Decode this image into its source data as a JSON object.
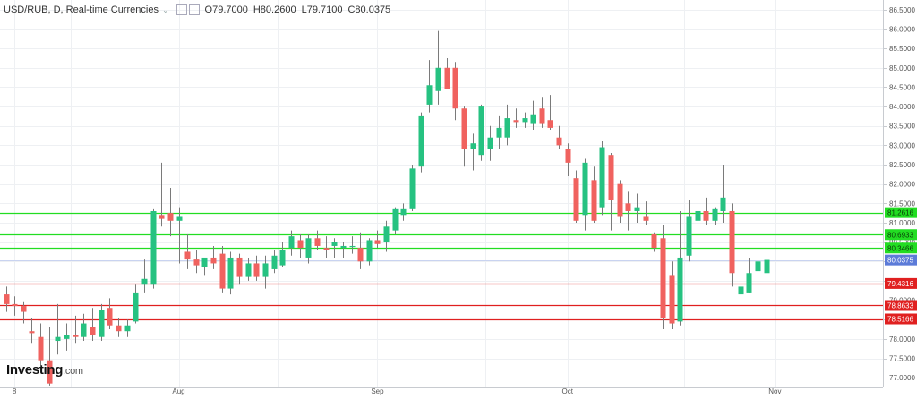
{
  "header": {
    "title": "USD/RUB, D, Real-time Currencies",
    "chevron": "⌄",
    "open": "O79.7000",
    "high": "H80.2600",
    "low": "L79.7100",
    "close": "C80.0375"
  },
  "branding": {
    "name": "Investing",
    "suffix": ".com"
  },
  "colors": {
    "up": "#26c281",
    "down": "#f0625f",
    "support": "#e02020",
    "resistance": "#22dd22",
    "last": "#5c7bd8",
    "grid": "#eef0f3"
  },
  "chart_data": {
    "type": "candlestick",
    "title": "USD/RUB, D, Real-time Currencies",
    "ylim": [
      76.75,
      86.75
    ],
    "y_ticks": [
      "86.5000",
      "86.0000",
      "85.5000",
      "85.0000",
      "84.5000",
      "84.0000",
      "83.5000",
      "83.0000",
      "82.5000",
      "82.0000",
      "81.5000",
      "81.0000",
      "80.5000",
      "80.0000",
      "79.5000",
      "79.0000",
      "78.5000",
      "78.0000",
      "77.5000",
      "77.0000"
    ],
    "x_tick_labels": [
      {
        "label": "8",
        "index": 1
      },
      {
        "label": "Aug",
        "index": 20
      },
      {
        "label": "Sep",
        "index": 43
      },
      {
        "label": "Oct",
        "index": 65
      },
      {
        "label": "Nov",
        "index": 89
      }
    ],
    "candles": [
      {
        "o": 79.15,
        "h": 79.35,
        "l": 78.7,
        "c": 78.9
      },
      {
        "o": 78.9,
        "h": 79.1,
        "l": 78.6,
        "c": 78.85
      },
      {
        "o": 78.85,
        "h": 78.95,
        "l": 78.4,
        "c": 78.7
      },
      {
        "o": 78.2,
        "h": 78.55,
        "l": 77.9,
        "c": 78.15
      },
      {
        "o": 78.05,
        "h": 78.4,
        "l": 77.3,
        "c": 77.45
      },
      {
        "o": 77.45,
        "h": 78.3,
        "l": 76.8,
        "c": 76.85
      },
      {
        "o": 77.95,
        "h": 78.9,
        "l": 77.6,
        "c": 78.05
      },
      {
        "o": 78.0,
        "h": 78.4,
        "l": 77.7,
        "c": 78.1
      },
      {
        "o": 78.1,
        "h": 78.6,
        "l": 77.9,
        "c": 78.05
      },
      {
        "o": 78.05,
        "h": 78.65,
        "l": 77.95,
        "c": 78.4
      },
      {
        "o": 78.3,
        "h": 78.8,
        "l": 77.95,
        "c": 78.1
      },
      {
        "o": 78.05,
        "h": 78.9,
        "l": 77.95,
        "c": 78.75
      },
      {
        "o": 78.8,
        "h": 79.05,
        "l": 78.25,
        "c": 78.35
      },
      {
        "o": 78.35,
        "h": 78.55,
        "l": 78.05,
        "c": 78.2
      },
      {
        "o": 78.2,
        "h": 78.5,
        "l": 78.05,
        "c": 78.35
      },
      {
        "o": 78.45,
        "h": 79.4,
        "l": 78.4,
        "c": 79.2
      },
      {
        "o": 79.4,
        "h": 80.05,
        "l": 79.2,
        "c": 79.55
      },
      {
        "o": 79.4,
        "h": 81.35,
        "l": 79.3,
        "c": 81.3
      },
      {
        "o": 81.2,
        "h": 82.55,
        "l": 80.9,
        "c": 81.1
      },
      {
        "o": 81.25,
        "h": 81.9,
        "l": 80.65,
        "c": 81.05
      },
      {
        "o": 81.05,
        "h": 81.4,
        "l": 79.95,
        "c": 81.15
      },
      {
        "o": 80.25,
        "h": 80.7,
        "l": 79.8,
        "c": 80.05
      },
      {
        "o": 80.05,
        "h": 80.3,
        "l": 79.7,
        "c": 79.9
      },
      {
        "o": 79.85,
        "h": 80.1,
        "l": 79.65,
        "c": 80.1
      },
      {
        "o": 80.1,
        "h": 80.4,
        "l": 79.8,
        "c": 79.95
      },
      {
        "o": 80.2,
        "h": 80.4,
        "l": 79.2,
        "c": 79.3
      },
      {
        "o": 79.3,
        "h": 80.25,
        "l": 79.15,
        "c": 80.1
      },
      {
        "o": 80.1,
        "h": 80.2,
        "l": 79.4,
        "c": 79.6
      },
      {
        "o": 79.6,
        "h": 80.1,
        "l": 79.5,
        "c": 79.95
      },
      {
        "o": 79.95,
        "h": 80.15,
        "l": 79.5,
        "c": 79.6
      },
      {
        "o": 79.6,
        "h": 80.15,
        "l": 79.3,
        "c": 79.95
      },
      {
        "o": 79.8,
        "h": 80.3,
        "l": 79.7,
        "c": 80.15
      },
      {
        "o": 79.9,
        "h": 80.5,
        "l": 79.85,
        "c": 80.3
      },
      {
        "o": 80.35,
        "h": 80.8,
        "l": 80.15,
        "c": 80.65
      },
      {
        "o": 80.55,
        "h": 80.7,
        "l": 80.1,
        "c": 80.35
      },
      {
        "o": 80.1,
        "h": 80.7,
        "l": 79.95,
        "c": 80.6
      },
      {
        "o": 80.6,
        "h": 80.8,
        "l": 80.3,
        "c": 80.4
      },
      {
        "o": 80.35,
        "h": 80.65,
        "l": 80.1,
        "c": 80.3
      },
      {
        "o": 80.4,
        "h": 80.6,
        "l": 80.1,
        "c": 80.5
      },
      {
        "o": 80.35,
        "h": 80.5,
        "l": 80.1,
        "c": 80.4
      },
      {
        "o": 80.4,
        "h": 80.65,
        "l": 80.2,
        "c": 80.4
      },
      {
        "o": 80.35,
        "h": 80.75,
        "l": 79.8,
        "c": 80.0
      },
      {
        "o": 80.0,
        "h": 80.6,
        "l": 79.9,
        "c": 80.55
      },
      {
        "o": 80.55,
        "h": 80.8,
        "l": 80.35,
        "c": 80.45
      },
      {
        "o": 80.5,
        "h": 81.05,
        "l": 80.25,
        "c": 80.9
      },
      {
        "o": 80.8,
        "h": 81.4,
        "l": 80.7,
        "c": 81.35
      },
      {
        "o": 81.2,
        "h": 81.5,
        "l": 81.05,
        "c": 81.35
      },
      {
        "o": 81.35,
        "h": 82.5,
        "l": 81.3,
        "c": 82.4
      },
      {
        "o": 82.45,
        "h": 83.85,
        "l": 82.3,
        "c": 83.75
      },
      {
        "o": 84.05,
        "h": 85.2,
        "l": 83.85,
        "c": 84.55
      },
      {
        "o": 84.4,
        "h": 85.95,
        "l": 84.05,
        "c": 85.0
      },
      {
        "o": 85.0,
        "h": 85.25,
        "l": 84.5,
        "c": 84.45
      },
      {
        "o": 85.0,
        "h": 85.15,
        "l": 83.65,
        "c": 83.95
      },
      {
        "o": 83.95,
        "h": 84.0,
        "l": 82.45,
        "c": 82.9
      },
      {
        "o": 82.9,
        "h": 83.3,
        "l": 82.35,
        "c": 83.05
      },
      {
        "o": 82.75,
        "h": 84.05,
        "l": 82.6,
        "c": 84.0
      },
      {
        "o": 82.9,
        "h": 83.5,
        "l": 82.6,
        "c": 83.2
      },
      {
        "o": 83.2,
        "h": 83.75,
        "l": 82.9,
        "c": 83.45
      },
      {
        "o": 83.2,
        "h": 84.05,
        "l": 83.0,
        "c": 83.7
      },
      {
        "o": 83.65,
        "h": 83.95,
        "l": 83.45,
        "c": 83.6
      },
      {
        "o": 83.6,
        "h": 83.85,
        "l": 83.45,
        "c": 83.7
      },
      {
        "o": 83.55,
        "h": 84.15,
        "l": 83.4,
        "c": 83.8
      },
      {
        "o": 83.95,
        "h": 84.25,
        "l": 83.45,
        "c": 83.55
      },
      {
        "o": 83.65,
        "h": 84.3,
        "l": 83.4,
        "c": 83.45
      },
      {
        "o": 83.2,
        "h": 83.5,
        "l": 82.9,
        "c": 83.0
      },
      {
        "o": 82.9,
        "h": 83.05,
        "l": 82.2,
        "c": 82.55
      },
      {
        "o": 82.15,
        "h": 82.35,
        "l": 81.0,
        "c": 81.05
      },
      {
        "o": 81.2,
        "h": 82.65,
        "l": 80.8,
        "c": 82.55
      },
      {
        "o": 82.1,
        "h": 82.45,
        "l": 81.0,
        "c": 81.05
      },
      {
        "o": 81.4,
        "h": 83.1,
        "l": 81.2,
        "c": 82.95
      },
      {
        "o": 82.75,
        "h": 82.8,
        "l": 80.8,
        "c": 81.6
      },
      {
        "o": 82.0,
        "h": 82.1,
        "l": 81.0,
        "c": 81.15
      },
      {
        "o": 81.5,
        "h": 81.8,
        "l": 80.8,
        "c": 81.3
      },
      {
        "o": 81.3,
        "h": 81.75,
        "l": 81.0,
        "c": 81.4
      },
      {
        "o": 81.15,
        "h": 81.55,
        "l": 80.95,
        "c": 81.05
      },
      {
        "o": 80.7,
        "h": 80.75,
        "l": 80.25,
        "c": 80.35
      },
      {
        "o": 80.6,
        "h": 80.95,
        "l": 78.25,
        "c": 78.55
      },
      {
        "o": 79.65,
        "h": 80.0,
        "l": 78.25,
        "c": 78.4
      },
      {
        "o": 78.45,
        "h": 81.3,
        "l": 78.35,
        "c": 80.1
      },
      {
        "o": 80.15,
        "h": 81.6,
        "l": 80.0,
        "c": 81.15
      },
      {
        "o": 81.05,
        "h": 81.35,
        "l": 80.75,
        "c": 81.3
      },
      {
        "o": 81.3,
        "h": 81.65,
        "l": 80.95,
        "c": 81.05
      },
      {
        "o": 81.05,
        "h": 81.4,
        "l": 80.95,
        "c": 81.35
      },
      {
        "o": 81.3,
        "h": 82.5,
        "l": 81.0,
        "c": 81.65
      },
      {
        "o": 81.3,
        "h": 81.5,
        "l": 79.35,
        "c": 79.7
      },
      {
        "o": 79.15,
        "h": 79.55,
        "l": 78.95,
        "c": 79.35
      },
      {
        "o": 79.2,
        "h": 80.1,
        "l": 79.2,
        "c": 79.7
      },
      {
        "o": 79.75,
        "h": 80.15,
        "l": 79.7,
        "c": 80.0
      },
      {
        "o": 79.7,
        "h": 80.26,
        "l": 79.71,
        "c": 80.04
      }
    ],
    "horizontal_lines": [
      {
        "value": 81.2616,
        "label": "81.2616",
        "kind": "resistance"
      },
      {
        "value": 80.6933,
        "label": "80.6933",
        "kind": "resistance"
      },
      {
        "value": 80.3466,
        "label": "80.3466",
        "kind": "resistance"
      },
      {
        "value": 80.0375,
        "label": "80.0375",
        "kind": "last"
      },
      {
        "value": 79.4316,
        "label": "79.4316",
        "kind": "support"
      },
      {
        "value": 78.8633,
        "label": "78.8633",
        "kind": "support"
      },
      {
        "value": 78.5166,
        "label": "78.5166",
        "kind": "support"
      }
    ]
  }
}
